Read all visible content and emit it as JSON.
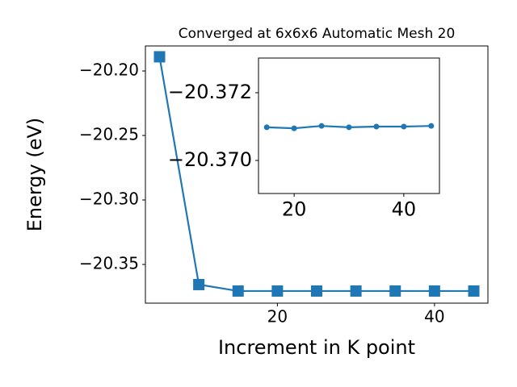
{
  "chart_data": [
    {
      "type": "line",
      "title": "Converged at 6x6x6 Automatic Mesh 20",
      "x_label": "Increment in K point",
      "y_label": "Energy (eV)",
      "marker": "square",
      "series": [
        {
          "color": "#1f77b4",
          "x": [
            5,
            10,
            15,
            20,
            25,
            30,
            35,
            40,
            45
          ],
          "values": [
            -20.189,
            -20.3656,
            -20.3706,
            -20.3706,
            -20.3706,
            -20.3706,
            -20.3706,
            -20.3706,
            -20.3706
          ]
        }
      ],
      "xlim": [
        3.2,
        46.8
      ],
      "xticks": [
        20,
        40
      ],
      "ylim": [
        -20.38,
        -20.1806
      ],
      "yticks": [
        {
          "value": -20.35,
          "label": "−20.35"
        },
        {
          "value": -20.3,
          "label": "−20.30"
        },
        {
          "value": -20.25,
          "label": "−20.25"
        },
        {
          "value": -20.2,
          "label": "−20.20"
        }
      ]
    },
    {
      "type": "line",
      "marker": "circle",
      "series": [
        {
          "color": "#1f77b4",
          "x": [
            15,
            20,
            25,
            30,
            35,
            40,
            45
          ],
          "values": [
            -20.37098,
            -20.37095,
            -20.37102,
            -20.37098,
            -20.371,
            -20.371,
            -20.37102
          ]
        }
      ],
      "xlim": [
        13.5,
        46.5
      ],
      "xticks": [
        20,
        40
      ],
      "ylim": [
        -20.369024,
        -20.373024
      ],
      "yticks": [
        {
          "value": -20.37,
          "label": "−20.370"
        },
        {
          "value": -20.372,
          "label": "−20.372"
        }
      ]
    }
  ]
}
